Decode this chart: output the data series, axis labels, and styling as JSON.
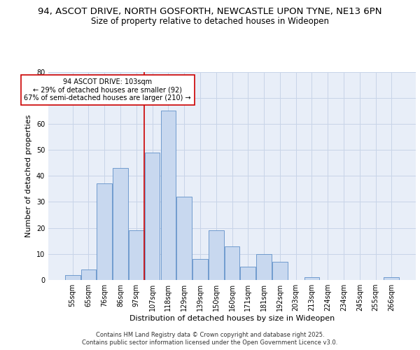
{
  "title_line1": "94, ASCOT DRIVE, NORTH GOSFORTH, NEWCASTLE UPON TYNE, NE13 6PN",
  "title_line2": "Size of property relative to detached houses in Wideopen",
  "xlabel": "Distribution of detached houses by size in Wideopen",
  "ylabel": "Number of detached properties",
  "categories": [
    "55sqm",
    "65sqm",
    "76sqm",
    "86sqm",
    "97sqm",
    "107sqm",
    "118sqm",
    "129sqm",
    "139sqm",
    "150sqm",
    "160sqm",
    "171sqm",
    "181sqm",
    "192sqm",
    "203sqm",
    "213sqm",
    "224sqm",
    "234sqm",
    "245sqm",
    "255sqm",
    "266sqm"
  ],
  "values": [
    2,
    4,
    37,
    43,
    19,
    49,
    65,
    32,
    8,
    19,
    13,
    5,
    10,
    7,
    0,
    1,
    0,
    0,
    0,
    0,
    1
  ],
  "bar_color": "#c8d8ef",
  "bar_edge_color": "#6090c8",
  "annotation_text": "94 ASCOT DRIVE: 103sqm\n← 29% of detached houses are smaller (92)\n67% of semi-detached houses are larger (210) →",
  "annotation_box_color": "#ffffff",
  "annotation_box_edge_color": "#cc0000",
  "vline_color": "#cc0000",
  "vline_x": 4.5,
  "ylim": [
    0,
    80
  ],
  "yticks": [
    0,
    10,
    20,
    30,
    40,
    50,
    60,
    70,
    80
  ],
  "grid_color": "#c8d4e8",
  "bg_color": "#e8eef8",
  "footnote": "Contains HM Land Registry data © Crown copyright and database right 2025.\nContains public sector information licensed under the Open Government Licence v3.0.",
  "title_fontsize": 9.5,
  "subtitle_fontsize": 8.5,
  "axis_label_fontsize": 8,
  "tick_fontsize": 7,
  "annotation_fontsize": 7,
  "footnote_fontsize": 6
}
